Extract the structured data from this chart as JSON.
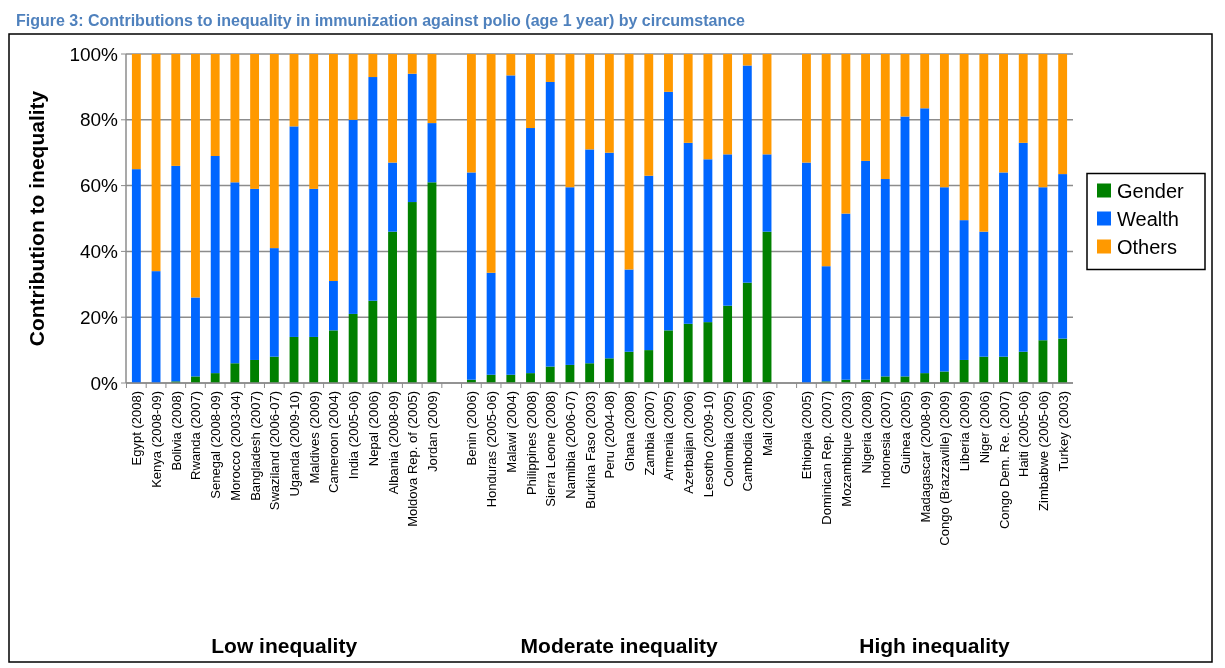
{
  "chart_data": {
    "type": "bar",
    "stacked": true,
    "title": "Figure 3: Contributions to inequality in immunization against polio (age 1 year) by circumstance",
    "ylabel": "Contribution to inequality",
    "categories": [
      "Egypt (2008)",
      "Kenya (2008-09)",
      "Bolivia (2008)",
      "Rwanda (2007)",
      "Senegal (2008-09)",
      "Morocco (2003-04)",
      "Bangladesh (2007)",
      "Swaziland (2006-07)",
      "Uganda (2009-10)",
      "Maldives (2009)",
      "Cameroon (2004)",
      "India (2005-06)",
      "Nepal (2006)",
      "Albania (2008-09)",
      "Moldova Rep. of (2005)",
      "Jordan (2009)",
      null,
      "Benin (2006)",
      "Honduras (2005-06)",
      "Malawi (2004)",
      "Philippines (2008)",
      "Sierra Leone (2008)",
      "Namibia (2006-07)",
      "Burkina Faso (2003)",
      "Peru (2004-08)",
      "Ghana (2008)",
      "Zambia (2007)",
      "Armenia (2005)",
      "Azerbaijan (2006)",
      "Lesotho (2009-10)",
      "Colombia (2005)",
      "Cambodia (2005)",
      "Mali (2006)",
      null,
      "Ethiopia (2005)",
      "Dominican Rep. (2007)",
      "Mozambique (2003)",
      "Nigeria (2008)",
      "Indonesia (2007)",
      "Guinea (2005)",
      "Madagascar (2008-09)",
      "Congo (Brazzaville) (2009)",
      "Liberia (2009)",
      "Niger (2006)",
      "Congo Dem. Re. (2007)",
      "Haiti (2005-06)",
      "Zimbabwe (2005-06)",
      "Turkey (2003)"
    ],
    "series": [
      {
        "name": "Gender",
        "color": "#008000",
        "values": [
          0,
          0,
          0.5,
          2,
          3,
          6,
          7,
          8,
          14,
          14,
          16,
          21,
          25,
          46,
          55,
          61,
          null,
          1,
          2.5,
          2.5,
          3,
          5,
          5.5,
          6,
          7.5,
          9.5,
          10,
          16,
          18,
          18.5,
          23.5,
          30.5,
          46,
          null,
          0,
          0.5,
          1,
          1,
          2,
          2,
          3,
          3.5,
          7,
          8,
          8,
          9.5,
          13,
          13.5
        ]
      },
      {
        "name": "Wealth",
        "color": "#0066ff",
        "values": [
          65,
          34,
          65.5,
          24,
          66,
          55,
          52,
          33,
          64,
          45,
          15,
          59,
          68,
          21,
          39,
          18,
          null,
          63,
          31,
          91,
          74.5,
          86.5,
          54,
          65,
          62.5,
          25,
          53,
          72.5,
          55,
          49.5,
          46,
          66,
          23.5,
          null,
          67,
          35,
          50.5,
          66.5,
          60,
          79,
          80.5,
          56,
          42.5,
          38,
          56,
          63.5,
          46.5,
          50
        ]
      },
      {
        "name": "Others",
        "color": "#ff9900",
        "values": [
          35,
          66,
          34,
          74,
          31,
          39,
          41,
          59,
          22,
          41,
          69,
          20,
          7,
          33,
          6,
          21,
          null,
          36,
          66.5,
          6.5,
          22.5,
          8.5,
          40.5,
          29,
          30,
          65.5,
          37,
          11.5,
          27,
          32,
          30.5,
          3.5,
          30.5,
          null,
          33,
          64.5,
          48.5,
          32.5,
          38,
          19,
          16.5,
          40.5,
          50.5,
          54,
          36,
          27,
          40.5,
          36.5
        ]
      }
    ],
    "ylim": [
      0,
      100
    ],
    "yticks": [
      {
        "value": 0,
        "label": "0%"
      },
      {
        "value": 20,
        "label": "20%"
      },
      {
        "value": 40,
        "label": "40%"
      },
      {
        "value": 60,
        "label": "60%"
      },
      {
        "value": 80,
        "label": "80%"
      },
      {
        "value": 100,
        "label": "100%"
      }
    ],
    "grid": "y",
    "legend": "right",
    "annotations": [
      "Low inequality",
      "Moderate inequality",
      "High inequality"
    ]
  }
}
